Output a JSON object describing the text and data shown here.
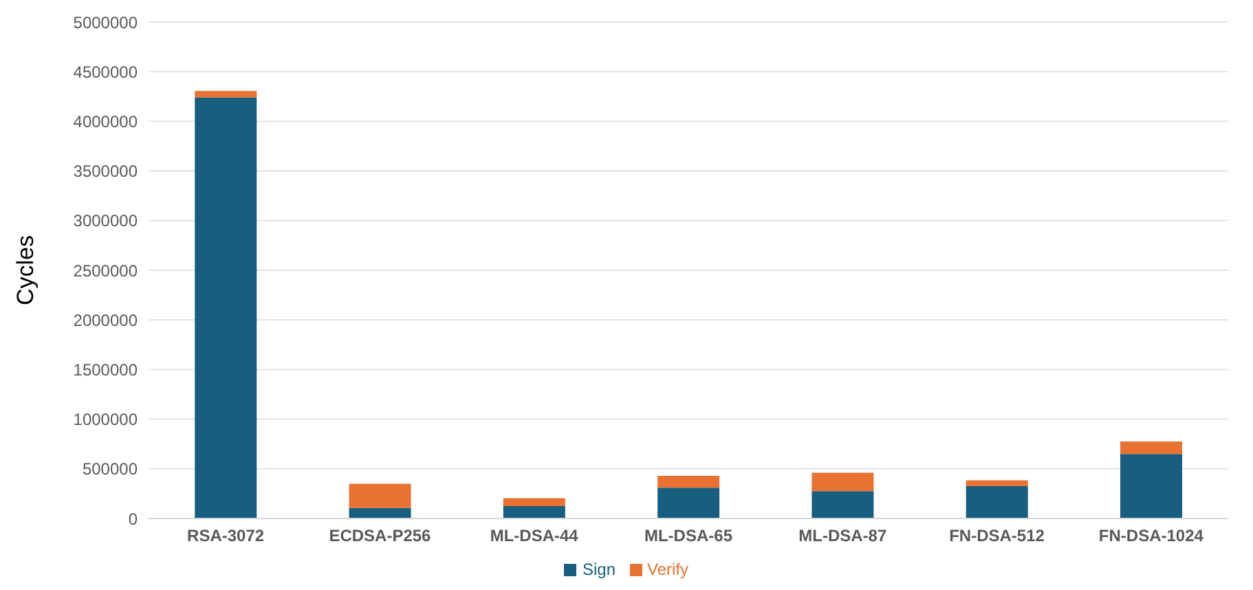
{
  "chart_data": {
    "type": "bar",
    "stacked": true,
    "ylabel": "Cycles",
    "categories": [
      "RSA-3072",
      "ECDSA-P256",
      "ML-DSA-44",
      "ML-DSA-65",
      "ML-DSA-87",
      "FN-DSA-512",
      "FN-DSA-1024"
    ],
    "series": [
      {
        "name": "Sign",
        "color": "#175e7f",
        "values": [
          4240000,
          105000,
          125000,
          310000,
          275000,
          325000,
          650000
        ]
      },
      {
        "name": "Verify",
        "color": "#e97132",
        "values": [
          65000,
          245000,
          80000,
          120000,
          185000,
          60000,
          125000
        ]
      }
    ],
    "ylim": [
      0,
      5000000
    ],
    "yticks": [
      0,
      500000,
      1000000,
      1500000,
      2000000,
      2500000,
      3000000,
      3500000,
      4000000,
      4500000,
      5000000
    ],
    "grid": "y",
    "legend": "bottom"
  }
}
